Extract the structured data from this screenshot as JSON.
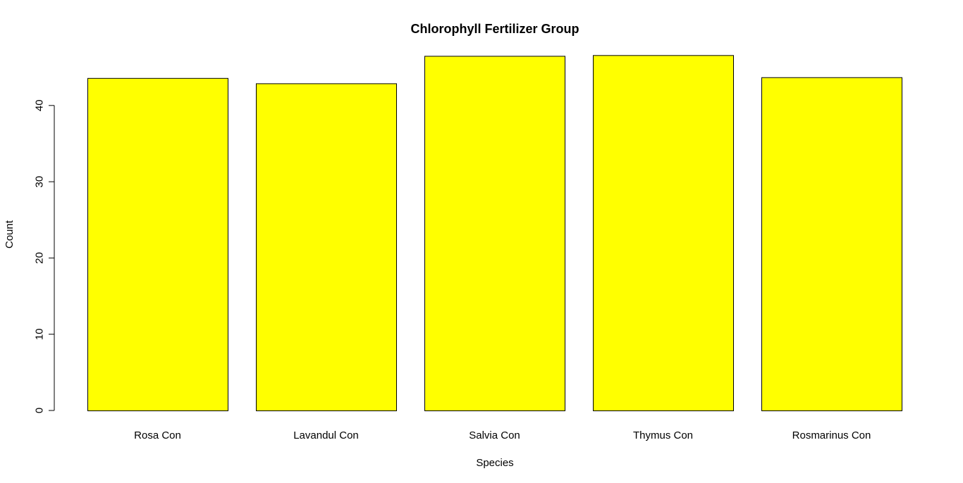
{
  "chart_data": {
    "type": "bar",
    "title": "Chlorophyll Fertilizer Group",
    "xlabel": "Species",
    "ylabel": "Count",
    "categories": [
      "Rosa Con",
      "Lavandul Con",
      "Salvia Con",
      "Thymus Con",
      "Rosmarinus Con"
    ],
    "values": [
      43.6,
      42.9,
      46.5,
      46.6,
      43.7
    ],
    "yticks": [
      0,
      10,
      20,
      30,
      40
    ],
    "ylim": [
      0,
      46.6
    ],
    "bar_color": "#ffff00",
    "bar_border_color": "#000000",
    "grid": false,
    "legend": "none"
  }
}
